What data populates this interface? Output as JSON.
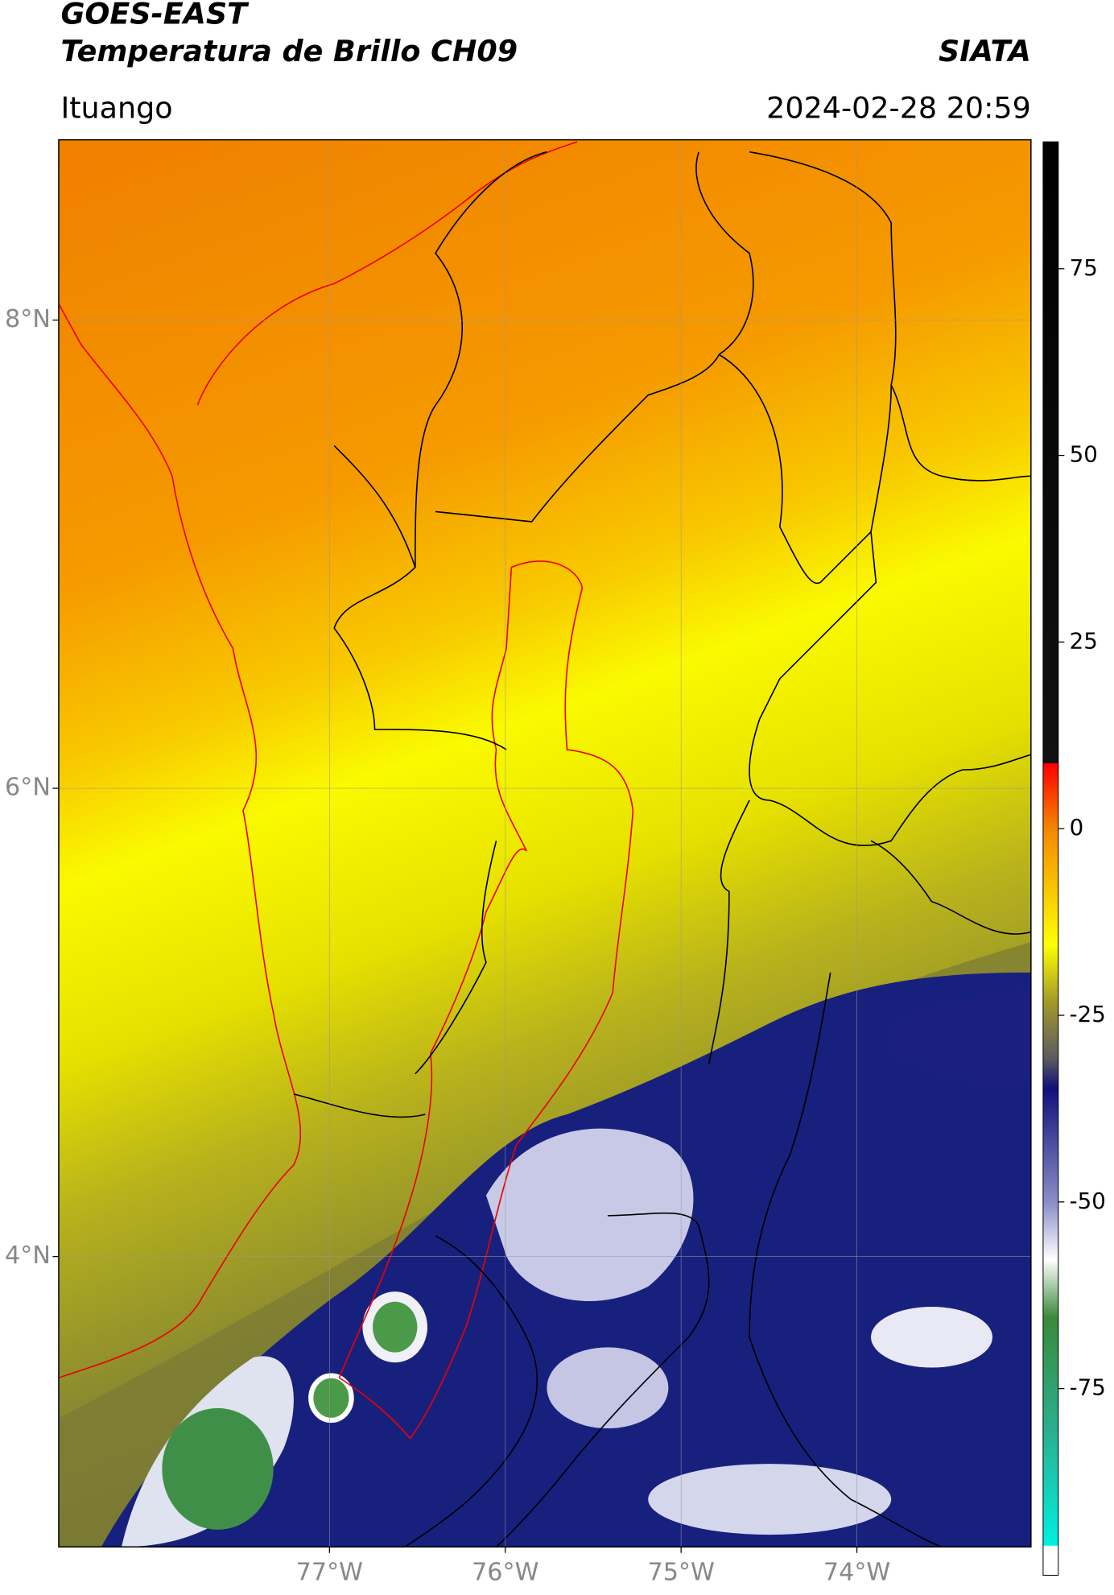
{
  "header": {
    "title": "GOES-EAST",
    "subtitle": "Temperatura de Brillo CH09",
    "source": "SIATA",
    "region": "Ituango",
    "datetime": "2024-02-28 20:59"
  },
  "map": {
    "lonlim": [
      -78.54,
      -73.01
    ],
    "latlim": [
      2.76,
      8.77
    ],
    "lon_ticks": [
      {
        "value": -77,
        "label": "77°W"
      },
      {
        "value": -76,
        "label": "76°W"
      },
      {
        "value": -75,
        "label": "75°W"
      },
      {
        "value": -74,
        "label": "74°W"
      }
    ],
    "lat_ticks": [
      {
        "value": 8,
        "label": "8°N"
      },
      {
        "value": 6,
        "label": "6°N"
      },
      {
        "value": 4,
        "label": "4°N"
      }
    ]
  },
  "colorbar": {
    "ylim": [
      -100,
      92
    ],
    "ticks": [
      75,
      50,
      25,
      0,
      -25,
      -50,
      -75
    ]
  }
}
